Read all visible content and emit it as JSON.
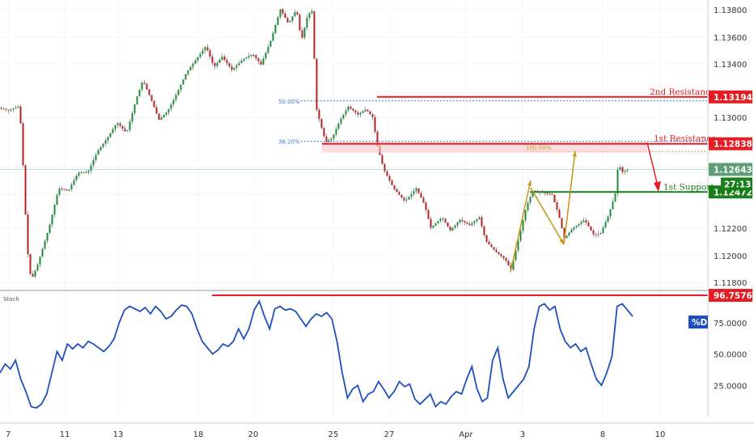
{
  "chart_data": [
    {
      "type": "candlestick",
      "title": "",
      "x_tick_labels": [
        "7",
        "11",
        "13",
        "18",
        "20",
        "25",
        "27",
        "Apr",
        "3",
        "8",
        "10"
      ],
      "y_tick_labels": [
        "1.13800",
        "1.13600",
        "1.13400",
        "1.13000",
        "1.12600",
        "1.12400",
        "1.12200",
        "1.12000",
        "1.11800"
      ],
      "ylim": [
        1.1173,
        1.1393
      ],
      "close_path": [
        [
          0,
          1.1311
        ],
        [
          10,
          1.1309
        ],
        [
          22,
          1.1312
        ],
        [
          26,
          1.1295
        ],
        [
          30,
          1.124
        ],
        [
          34,
          1.12
        ],
        [
          38,
          1.118
        ],
        [
          46,
          1.1192
        ],
        [
          60,
          1.122
        ],
        [
          72,
          1.125
        ],
        [
          84,
          1.1248
        ],
        [
          96,
          1.1262
        ],
        [
          108,
          1.1262
        ],
        [
          120,
          1.1278
        ],
        [
          132,
          1.1288
        ],
        [
          144,
          1.13
        ],
        [
          156,
          1.1292
        ],
        [
          168,
          1.1318
        ],
        [
          176,
          1.1332
        ],
        [
          186,
          1.1318
        ],
        [
          196,
          1.1302
        ],
        [
          206,
          1.1308
        ],
        [
          218,
          1.1322
        ],
        [
          230,
          1.1338
        ],
        [
          242,
          1.1348
        ],
        [
          254,
          1.1358
        ],
        [
          264,
          1.1342
        ],
        [
          274,
          1.135
        ],
        [
          286,
          1.134
        ],
        [
          300,
          1.1348
        ],
        [
          312,
          1.1352
        ],
        [
          322,
          1.1344
        ],
        [
          334,
          1.1362
        ],
        [
          346,
          1.1386
        ],
        [
          356,
          1.1375
        ],
        [
          366,
          1.1386
        ],
        [
          372,
          1.1362
        ],
        [
          380,
          1.1382
        ],
        [
          386,
          1.1385
        ],
        [
          390,
          1.1312
        ],
        [
          396,
          1.1298
        ],
        [
          402,
          1.1285
        ],
        [
          410,
          1.1288
        ],
        [
          420,
          1.1302
        ],
        [
          430,
          1.1312
        ],
        [
          442,
          1.1306
        ],
        [
          452,
          1.131
        ],
        [
          460,
          1.1304
        ],
        [
          466,
          1.1282
        ],
        [
          474,
          1.1264
        ],
        [
          486,
          1.125
        ],
        [
          500,
          1.124
        ],
        [
          514,
          1.125
        ],
        [
          524,
          1.1238
        ],
        [
          532,
          1.122
        ],
        [
          546,
          1.1228
        ],
        [
          556,
          1.1218
        ],
        [
          568,
          1.1226
        ],
        [
          580,
          1.1222
        ],
        [
          592,
          1.1228
        ],
        [
          600,
          1.121
        ],
        [
          612,
          1.1202
        ],
        [
          624,
          1.1196
        ],
        [
          631,
          1.1188
        ],
        [
          640,
          1.121
        ],
        [
          650,
          1.1236
        ],
        [
          658,
          1.1248
        ],
        [
          670,
          1.1247
        ],
        [
          682,
          1.1245
        ],
        [
          690,
          1.123
        ],
        [
          697,
          1.1212
        ],
        [
          708,
          1.122
        ],
        [
          722,
          1.1226
        ],
        [
          734,
          1.1214
        ],
        [
          742,
          1.1216
        ],
        [
          752,
          1.123
        ],
        [
          760,
          1.1246
        ],
        [
          764,
          1.127
        ],
        [
          768,
          1.1262
        ],
        [
          776,
          1.1264
        ]
      ],
      "horizontal_levels": [
        {
          "label": "2nd Resistance",
          "price_tag": "1.13194",
          "price": 1.13194,
          "color": "#e31e24"
        },
        {
          "label": "1st Resistance",
          "price_tag": "1.12838",
          "price": 1.12838,
          "color": "#e31e24"
        },
        {
          "label": "1st Support",
          "price_tag": "1.12472",
          "price": 1.12472,
          "color": "#1a7f1a"
        }
      ],
      "fib_levels": [
        {
          "label": "50.00%",
          "price": 1.13194
        },
        {
          "label": "38.20%",
          "price": 1.12838
        },
        {
          "label": "100.00%",
          "price": 1.1278
        }
      ],
      "last_price": {
        "label": "1.12643",
        "countdown": "27:13",
        "price": 1.12643
      }
    },
    {
      "type": "line",
      "title": "Stoch",
      "series": [
        {
          "name": "%D",
          "values": [
            35,
            42,
            38,
            45,
            30,
            20,
            8,
            7,
            10,
            18,
            35,
            52,
            45,
            58,
            54,
            58,
            55,
            60,
            58,
            55,
            52,
            56,
            62,
            75,
            85,
            88,
            86,
            84,
            87,
            82,
            88,
            84,
            78,
            80,
            85,
            89,
            88,
            82,
            70,
            60,
            55,
            50,
            53,
            58,
            56,
            60,
            70,
            62,
            70,
            85,
            92,
            80,
            70,
            86,
            88,
            85,
            86,
            84,
            78,
            72,
            78,
            82,
            80,
            83,
            78,
            60,
            35,
            15,
            22,
            25,
            12,
            18,
            20,
            28,
            22,
            15,
            20,
            28,
            24,
            26,
            14,
            10,
            14,
            18,
            8,
            12,
            10,
            16,
            20,
            18,
            30,
            40,
            22,
            12,
            15,
            45,
            55,
            30,
            15,
            20,
            25,
            30,
            40,
            70,
            88,
            90,
            85,
            88,
            70,
            60,
            55,
            58,
            52,
            55,
            42,
            30,
            25,
            35,
            48,
            88,
            90,
            85,
            80
          ]
        }
      ],
      "y_tick_labels": [
        "75.0000",
        "50.0000",
        "25.0000"
      ],
      "ylim": [
        0,
        100
      ],
      "reference_level": {
        "label": "96.7576",
        "value": 96.7576
      }
    }
  ]
}
